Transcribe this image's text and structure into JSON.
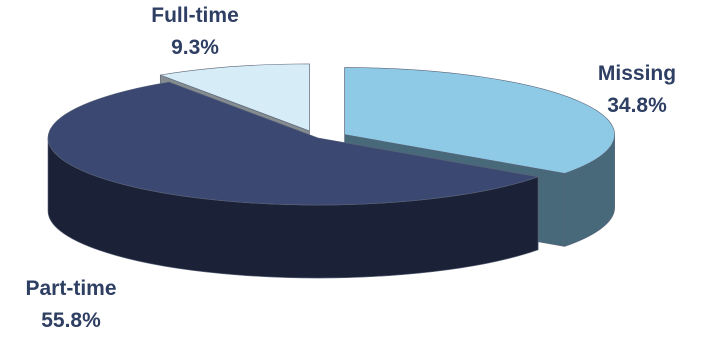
{
  "chart_data": {
    "type": "pie",
    "style": "3d-exploded",
    "title": "",
    "slices": [
      {
        "label": "Missing",
        "value": 34.8,
        "value_label": "34.8%",
        "top_color": "#8ecae6",
        "side_color": "#47697a",
        "exploded": true
      },
      {
        "label": "Part-time",
        "value": 55.8,
        "value_label": "55.8%",
        "top_color": "#3b4872",
        "side_color": "#1b2238",
        "exploded": false
      },
      {
        "label": "Full-time",
        "value": 9.3,
        "value_label": "9.3%",
        "top_color": "#d6ecf6",
        "side_color": "#848c90",
        "exploded": true
      }
    ],
    "label_color": "#2e3f63",
    "legend": "none"
  }
}
